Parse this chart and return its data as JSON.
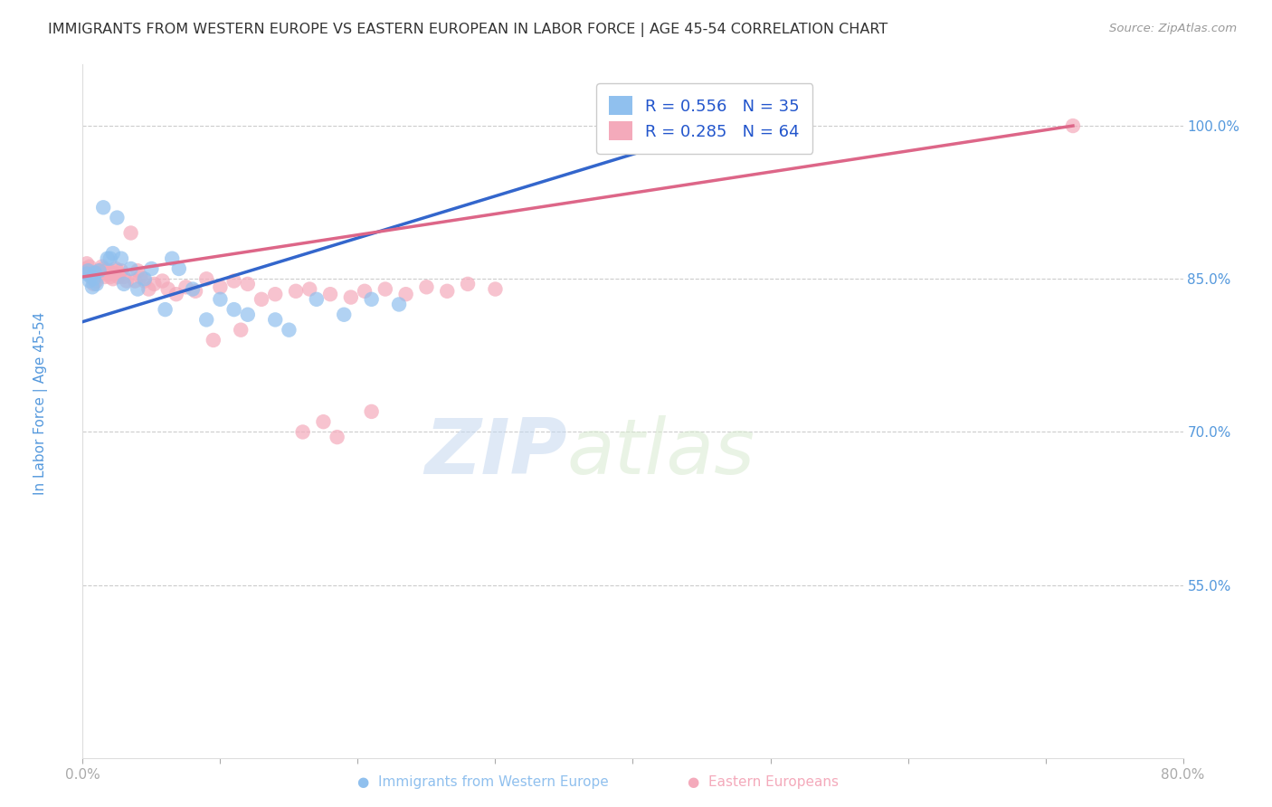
{
  "title": "IMMIGRANTS FROM WESTERN EUROPE VS EASTERN EUROPEAN IN LABOR FORCE | AGE 45-54 CORRELATION CHART",
  "source": "Source: ZipAtlas.com",
  "ylabel": "In Labor Force | Age 45-54",
  "xmin": 0.0,
  "xmax": 0.8,
  "ymin": 0.38,
  "ymax": 1.06,
  "grid_color": "#cccccc",
  "background_color": "#ffffff",
  "blue_color": "#90C0EE",
  "pink_color": "#F4AABB",
  "blue_line_color": "#3366CC",
  "pink_line_color": "#DD6688",
  "legend_R_blue": "R = 0.556",
  "legend_N_blue": "N = 35",
  "legend_R_pink": "R = 0.285",
  "legend_N_pink": "N = 64",
  "watermark_zip": "ZIP",
  "watermark_atlas": "atlas",
  "title_color": "#333333",
  "axis_label_color": "#5599DD",
  "western_europe_x": [
    0.003,
    0.004,
    0.005,
    0.006,
    0.007,
    0.008,
    0.009,
    0.01,
    0.012,
    0.015,
    0.018,
    0.02,
    0.022,
    0.025,
    0.028,
    0.03,
    0.035,
    0.04,
    0.045,
    0.05,
    0.06,
    0.065,
    0.07,
    0.08,
    0.09,
    0.1,
    0.11,
    0.12,
    0.14,
    0.15,
    0.17,
    0.19,
    0.21,
    0.23,
    0.48
  ],
  "western_europe_y": [
    0.855,
    0.858,
    0.848,
    0.852,
    0.842,
    0.85,
    0.856,
    0.845,
    0.858,
    0.92,
    0.87,
    0.87,
    0.875,
    0.91,
    0.87,
    0.845,
    0.86,
    0.84,
    0.85,
    0.86,
    0.82,
    0.87,
    0.86,
    0.84,
    0.81,
    0.83,
    0.82,
    0.815,
    0.81,
    0.8,
    0.83,
    0.815,
    0.83,
    0.825,
    1.0
  ],
  "eastern_europe_x": [
    0.002,
    0.003,
    0.004,
    0.005,
    0.006,
    0.007,
    0.008,
    0.009,
    0.01,
    0.011,
    0.012,
    0.013,
    0.014,
    0.015,
    0.016,
    0.017,
    0.018,
    0.019,
    0.02,
    0.021,
    0.022,
    0.023,
    0.024,
    0.025,
    0.026,
    0.028,
    0.03,
    0.032,
    0.035,
    0.038,
    0.04,
    0.042,
    0.045,
    0.048,
    0.052,
    0.058,
    0.062,
    0.068,
    0.075,
    0.082,
    0.09,
    0.1,
    0.11,
    0.12,
    0.13,
    0.14,
    0.155,
    0.165,
    0.18,
    0.195,
    0.205,
    0.22,
    0.235,
    0.25,
    0.265,
    0.28,
    0.3,
    0.16,
    0.175,
    0.185,
    0.21,
    0.095,
    0.115,
    0.72
  ],
  "eastern_europe_y": [
    0.86,
    0.865,
    0.858,
    0.862,
    0.855,
    0.852,
    0.845,
    0.85,
    0.848,
    0.855,
    0.858,
    0.855,
    0.862,
    0.86,
    0.852,
    0.858,
    0.855,
    0.858,
    0.852,
    0.855,
    0.85,
    0.855,
    0.86,
    0.858,
    0.852,
    0.858,
    0.852,
    0.848,
    0.895,
    0.848,
    0.858,
    0.852,
    0.848,
    0.84,
    0.845,
    0.848,
    0.84,
    0.835,
    0.842,
    0.838,
    0.85,
    0.842,
    0.848,
    0.845,
    0.83,
    0.835,
    0.838,
    0.84,
    0.835,
    0.832,
    0.838,
    0.84,
    0.835,
    0.842,
    0.838,
    0.845,
    0.84,
    0.7,
    0.71,
    0.695,
    0.72,
    0.79,
    0.8,
    1.0
  ]
}
